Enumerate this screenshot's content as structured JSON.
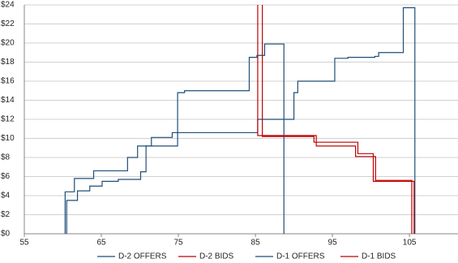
{
  "chart_data": {
    "type": "line",
    "grid": true,
    "xlim": [
      55,
      111.3
    ],
    "xticks": [
      55,
      65,
      75,
      85,
      95,
      105
    ],
    "ylim": [
      0,
      24
    ],
    "yticks": [
      {
        "value": 0,
        "label": "$0"
      },
      {
        "value": 2,
        "label": "$2"
      },
      {
        "value": 4,
        "label": "$4"
      },
      {
        "value": 6,
        "label": "$6"
      },
      {
        "value": 8,
        "label": "$8"
      },
      {
        "value": 10,
        "label": "$10"
      },
      {
        "value": 12,
        "label": "$12"
      },
      {
        "value": 14,
        "label": "$14"
      },
      {
        "value": 16,
        "label": "$16"
      },
      {
        "value": 18,
        "label": "$18"
      },
      {
        "value": 20,
        "label": "$20"
      },
      {
        "value": 22,
        "label": "$22"
      },
      {
        "value": 24,
        "label": "$24"
      }
    ],
    "series": [
      {
        "name": "D-2 OFFERS",
        "color": "#1f4e79",
        "x": [
          60.3,
          60.3,
          61.5,
          61.5,
          64,
          64,
          68.4,
          68.4,
          69.7,
          69.7,
          71.5,
          71.5,
          74.2,
          74.2,
          85.3,
          85.3,
          90,
          90,
          90.5,
          90.5,
          95.3,
          95.3,
          97,
          97,
          100.5,
          100.5,
          101,
          101,
          104.2,
          104.2,
          105.7,
          105.7
        ],
        "values": [
          0,
          4.4,
          4.4,
          5.8,
          5.8,
          6.6,
          6.6,
          8,
          8,
          9.2,
          9.2,
          10.1,
          10.1,
          10.6,
          10.6,
          12,
          12,
          14.8,
          14.8,
          16,
          16,
          18.4,
          18.4,
          18.5,
          18.5,
          18.6,
          18.6,
          19,
          19,
          23.7,
          23.7,
          0
        ]
      },
      {
        "name": "D-2 BIDS",
        "color": "#c00000",
        "x": [
          85.3,
          85.3,
          92.9,
          92.9,
          98,
          98,
          100.6,
          100.6,
          105.3,
          105.3
        ],
        "values": [
          24,
          10.3,
          10.3,
          9.2,
          9.2,
          8.1,
          8.1,
          5.6,
          5.6,
          0
        ]
      },
      {
        "name": "D-1 OFFERS",
        "color": "#1f4e79",
        "x": [
          60.5,
          60.5,
          61.9,
          61.9,
          63.5,
          63.5,
          65.1,
          65.1,
          67.2,
          67.2,
          70.1,
          70.1,
          70.8,
          70.8,
          74.9,
          74.9,
          75.8,
          75.8,
          84.2,
          84.2,
          85.2,
          85.2,
          86.2,
          86.2,
          88.7,
          88.7
        ],
        "values": [
          0,
          3.5,
          3.5,
          4.5,
          4.5,
          5,
          5,
          5.5,
          5.5,
          5.7,
          5.7,
          6.5,
          6.5,
          9.2,
          9.2,
          14.8,
          14.8,
          15,
          15,
          18.5,
          18.5,
          18.7,
          18.7,
          19.9,
          19.9,
          0
        ]
      },
      {
        "name": "D-1 BIDS",
        "color": "#c00000",
        "x": [
          85.9,
          85.9,
          92.6,
          92.6,
          98.3,
          98.3,
          100.3,
          100.3,
          105.6,
          105.6
        ],
        "values": [
          24,
          10.2,
          10.2,
          9.6,
          9.6,
          8.4,
          8.4,
          5.5,
          5.5,
          0
        ]
      }
    ]
  }
}
